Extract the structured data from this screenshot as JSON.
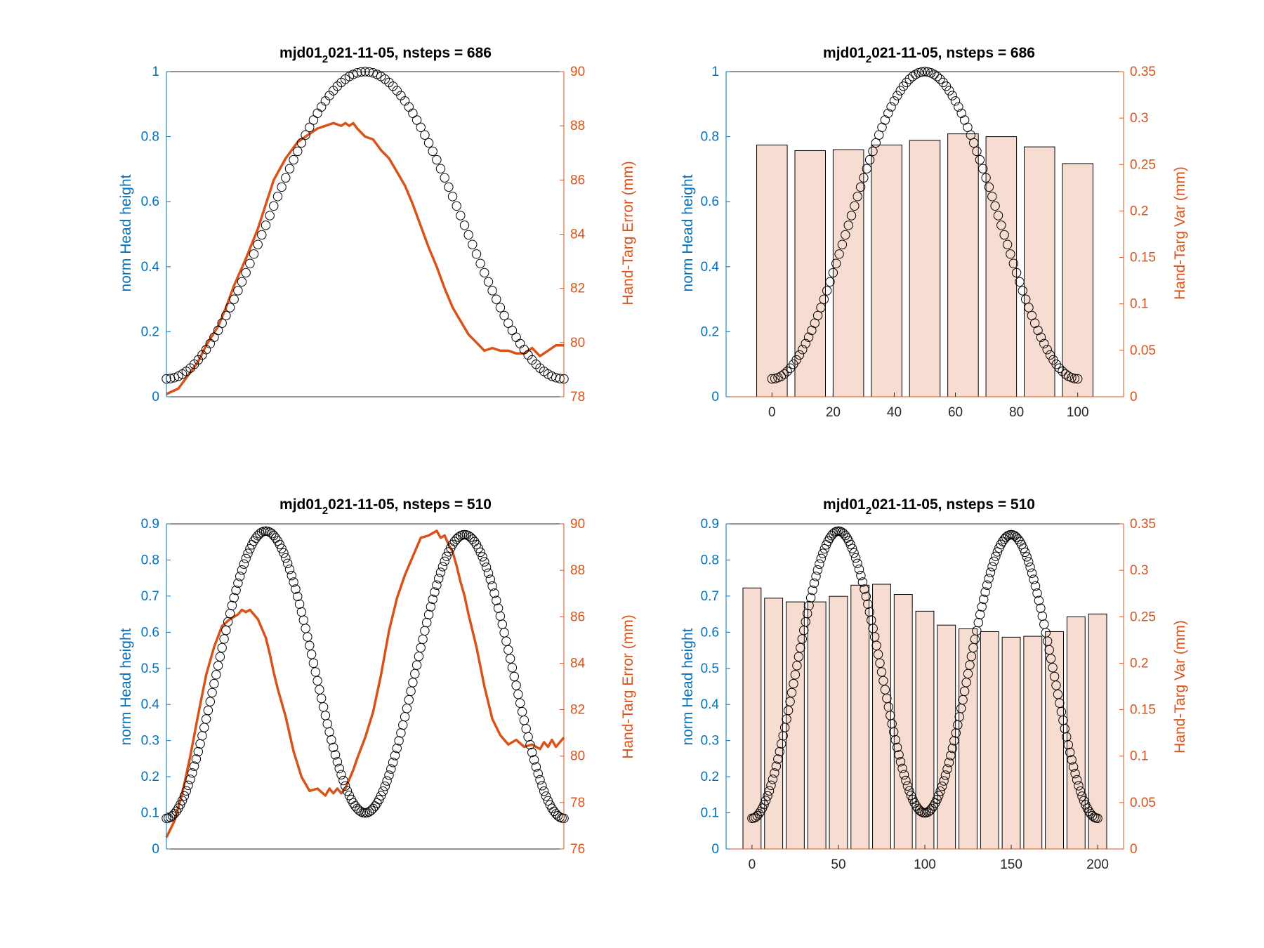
{
  "colors": {
    "left_axis": "#0072BD",
    "right_axis": "#D95319",
    "markers": "#000000",
    "bar_fill": "#F7DDD1",
    "bar_edge": "#000000",
    "box": "#262626"
  },
  "chart_data": [
    {
      "id": "top-left",
      "type": "line",
      "title_pre": "mjd01",
      "title_sub": "2",
      "title_post": "021-11-05, nsteps = 686",
      "ylabel_left": "norm Head height",
      "ylabel_right": "Hand-Targ Error (mm)",
      "ylim_left": [
        0,
        1
      ],
      "yticks_left": [
        "0",
        "0.2",
        "0.4",
        "0.6",
        "0.8",
        "1"
      ],
      "ylim_right": [
        78,
        90
      ],
      "yticks_right": [
        "78",
        "80",
        "82",
        "84",
        "86",
        "88",
        "90"
      ],
      "xlim": [
        0,
        100
      ],
      "xticks": [],
      "markers": {
        "kind": "cosine",
        "n": 101,
        "x0": 0,
        "x1": 100,
        "min": 0.055,
        "max": 1.0,
        "peaks": [
          50
        ]
      },
      "series": [
        {
          "axis": "right",
          "x": [
            0,
            3,
            5,
            8,
            10,
            13,
            15,
            17,
            20,
            23,
            25,
            27,
            30,
            33,
            35,
            38,
            40,
            42,
            44,
            45,
            46,
            47,
            48,
            50,
            52,
            54,
            56,
            58,
            60,
            62,
            64,
            66,
            68,
            70,
            72,
            74,
            76,
            78,
            80,
            82,
            84,
            86,
            88,
            90,
            92,
            94,
            96,
            98,
            100
          ],
          "y": [
            78.1,
            78.3,
            78.7,
            79.3,
            79.9,
            80.6,
            81.3,
            82.1,
            83.1,
            84.2,
            85.1,
            86.0,
            86.8,
            87.4,
            87.6,
            87.9,
            88.0,
            88.1,
            88.0,
            88.1,
            88.0,
            88.1,
            87.9,
            87.6,
            87.5,
            87.1,
            86.8,
            86.3,
            85.8,
            85.1,
            84.3,
            83.5,
            82.8,
            82.0,
            81.3,
            80.8,
            80.3,
            80.0,
            79.7,
            79.8,
            79.7,
            79.7,
            79.6,
            79.6,
            79.8,
            79.5,
            79.7,
            79.9,
            79.9
          ]
        }
      ]
    },
    {
      "id": "top-right",
      "type": "bar",
      "title_pre": "mjd01",
      "title_sub": "2",
      "title_post": "021-11-05, nsteps = 686",
      "ylabel_left": "norm Head height",
      "ylabel_right": "Hand-Targ Var (mm)",
      "ylim_left": [
        0,
        1
      ],
      "yticks_left": [
        "0",
        "0.2",
        "0.4",
        "0.6",
        "0.8",
        "1"
      ],
      "ylim_right": [
        0,
        0.35
      ],
      "yticks_right": [
        "0",
        "0.05",
        "0.1",
        "0.15",
        "0.2",
        "0.25",
        "0.3",
        "0.35"
      ],
      "xlim": [
        -15,
        115
      ],
      "xticks": [
        "0",
        "20",
        "40",
        "60",
        "80",
        "100"
      ],
      "markers": {
        "kind": "cosine",
        "n": 101,
        "x0": 0,
        "x1": 100,
        "min": 0.055,
        "max": 1.0,
        "peaks": [
          50
        ]
      },
      "bar_width": 10,
      "categories": [
        0,
        12.5,
        25,
        37.5,
        50,
        62.5,
        75,
        87.5,
        100
      ],
      "values": [
        0.271,
        0.265,
        0.266,
        0.271,
        0.276,
        0.283,
        0.28,
        0.269,
        0.251
      ]
    },
    {
      "id": "bottom-left",
      "type": "line",
      "title_pre": "mjd01",
      "title_sub": "2",
      "title_post": "021-11-05, nsteps = 510",
      "ylabel_left": "norm Head height",
      "ylabel_right": "Hand-Targ Error (mm)",
      "ylim_left": [
        0,
        0.9
      ],
      "yticks_left": [
        "0",
        "0.1",
        "0.2",
        "0.3",
        "0.4",
        "0.5",
        "0.6",
        "0.7",
        "0.8",
        "0.9"
      ],
      "ylim_right": [
        76,
        90
      ],
      "yticks_right": [
        "76",
        "78",
        "80",
        "82",
        "84",
        "86",
        "88",
        "90"
      ],
      "xlim": [
        0,
        100
      ],
      "xticks": [],
      "markers": {
        "kind": "cosine",
        "n": 201,
        "x0": 0,
        "x1": 100,
        "min": 0.085,
        "max": 0.88,
        "peaks": [
          25,
          75
        ],
        "trough": 0.1
      },
      "series": [
        {
          "axis": "right",
          "x": [
            0,
            2,
            4,
            6,
            8,
            10,
            12,
            14,
            16,
            18,
            19,
            20,
            21,
            22,
            23,
            24,
            25,
            26,
            27,
            28,
            30,
            32,
            34,
            36,
            38,
            40,
            41,
            42,
            43,
            44,
            45,
            46,
            47,
            48,
            50,
            52,
            54,
            56,
            58,
            60,
            62,
            64,
            66,
            68,
            69,
            70,
            71,
            72,
            73,
            74,
            75,
            76,
            78,
            80,
            82,
            84,
            86,
            88,
            90,
            92,
            94,
            95,
            96,
            97,
            98,
            99,
            100
          ],
          "y": [
            76.5,
            77.2,
            78.4,
            80.0,
            81.8,
            83.5,
            84.7,
            85.6,
            85.9,
            86.1,
            86.3,
            86.2,
            86.3,
            86.1,
            85.9,
            85.5,
            85.1,
            84.4,
            83.6,
            82.9,
            81.7,
            80.2,
            79.1,
            78.5,
            78.6,
            78.3,
            78.6,
            78.4,
            78.6,
            78.4,
            78.6,
            79.0,
            79.4,
            79.9,
            80.8,
            81.9,
            83.5,
            85.4,
            86.8,
            87.8,
            88.6,
            89.4,
            89.5,
            89.7,
            89.4,
            89.5,
            89.1,
            88.8,
            88.2,
            87.5,
            86.9,
            86.1,
            84.7,
            83.0,
            81.6,
            80.9,
            80.5,
            80.7,
            80.4,
            80.5,
            80.3,
            80.6,
            80.4,
            80.7,
            80.4,
            80.6,
            80.8
          ]
        }
      ]
    },
    {
      "id": "bottom-right",
      "type": "bar",
      "title_pre": "mjd01",
      "title_sub": "2",
      "title_post": "021-11-05, nsteps = 510",
      "ylabel_left": "norm Head height",
      "ylabel_right": "Hand-Targ Var (mm)",
      "ylim_left": [
        0,
        0.9
      ],
      "yticks_left": [
        "0",
        "0.1",
        "0.2",
        "0.3",
        "0.4",
        "0.5",
        "0.6",
        "0.7",
        "0.8",
        "0.9"
      ],
      "ylim_right": [
        0,
        0.35
      ],
      "yticks_right": [
        "0",
        "0.05",
        "0.1",
        "0.15",
        "0.2",
        "0.25",
        "0.3",
        "0.35"
      ],
      "xlim": [
        -15,
        215
      ],
      "xticks": [
        "0",
        "50",
        "100",
        "150",
        "200"
      ],
      "markers": {
        "kind": "cosine",
        "n": 201,
        "x0": 0,
        "x1": 200,
        "min": 0.085,
        "max": 0.88,
        "peaks": [
          50,
          150
        ],
        "trough": 0.1
      },
      "bar_width": 10.5,
      "categories": [
        0,
        12.5,
        25,
        37.5,
        50,
        62.5,
        75,
        87.5,
        100,
        112.5,
        125,
        137.5,
        150,
        162.5,
        175,
        187.5,
        200
      ],
      "values": [
        0.281,
        0.27,
        0.266,
        0.266,
        0.272,
        0.284,
        0.285,
        0.274,
        0.256,
        0.241,
        0.237,
        0.234,
        0.228,
        0.229,
        0.234,
        0.25,
        0.253
      ]
    }
  ]
}
